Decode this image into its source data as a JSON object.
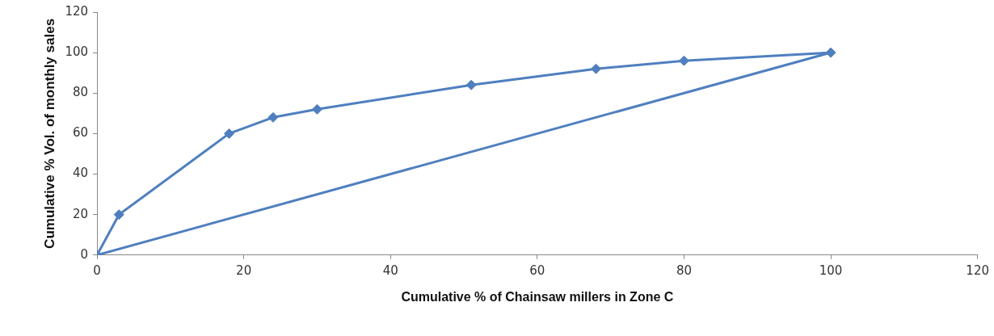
{
  "chart_data": {
    "type": "line",
    "xlabel": "Cumulative % of Chainsaw millers in Zone C",
    "ylabel": "Cumulative % Vol. of monthly sales",
    "xlim": [
      0,
      120
    ],
    "xticks": [
      0,
      20,
      40,
      60,
      80,
      100,
      120
    ],
    "ylim": [
      0,
      120
    ],
    "yticks": [
      0,
      20,
      40,
      60,
      80,
      100,
      120
    ],
    "grid": false,
    "legend": false,
    "marker": "diamond",
    "line_style": "solid",
    "series": [
      {
        "color": "#4f7fbf",
        "x": [
          0,
          3,
          18,
          24,
          30,
          51,
          68,
          80,
          100
        ],
        "values": [
          0,
          20,
          60,
          68,
          72,
          84,
          92,
          96,
          100
        ]
      },
      {
        "color": "#4f7fbf",
        "x": [
          0,
          100
        ],
        "values": [
          0,
          100
        ],
        "marker": "none"
      }
    ]
  }
}
